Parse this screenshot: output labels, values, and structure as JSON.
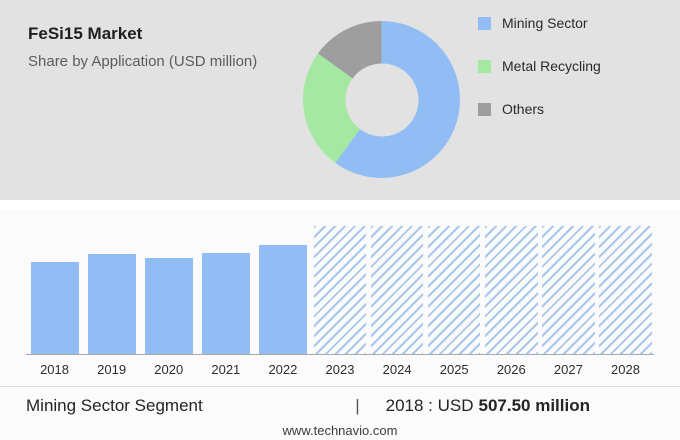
{
  "header": {
    "title": "FeSi15 Market",
    "subtitle": "Share by Application (USD million)"
  },
  "colors": {
    "panel_bg": "#e2e2e2",
    "mining_blue": "#92bdf4",
    "recycling_green": "#a5e8a2",
    "others_gray": "#9e9e9e",
    "hatch": "#a9c6ec"
  },
  "chart_data": [
    {
      "type": "pie",
      "title": "FeSi15 Market Share by Application (USD million)",
      "donut": true,
      "legend_position": "right",
      "labels": [
        "Mining Sector",
        "Metal Recycling",
        "Others"
      ],
      "values": [
        60,
        25,
        15
      ],
      "values_note": "percent estimated from slice angles; not labeled in image",
      "colors": [
        "#92bdf4",
        "#a5e8a2",
        "#9e9e9e"
      ]
    },
    {
      "type": "bar",
      "categories": [
        "2018",
        "2019",
        "2020",
        "2021",
        "2022",
        "2023",
        "2024",
        "2025",
        "2026",
        "2027",
        "2028"
      ],
      "series": [
        {
          "name": "Mining Sector (USD million)",
          "known_values": {
            "2018": 507.5
          }
        }
      ],
      "forecast_categories": [
        "2023",
        "2024",
        "2025",
        "2026",
        "2027",
        "2028"
      ],
      "forecast_style": "hatched",
      "bar_color": "#92bdf4",
      "grid": false,
      "bars": [
        {
          "year": "2018",
          "height_pct": 72,
          "forecast": false
        },
        {
          "year": "2019",
          "height_pct": 78,
          "forecast": false
        },
        {
          "year": "2020",
          "height_pct": 75,
          "forecast": false
        },
        {
          "year": "2021",
          "height_pct": 79,
          "forecast": false
        },
        {
          "year": "2022",
          "height_pct": 85,
          "forecast": false
        },
        {
          "year": "2023",
          "height_pct": 100,
          "forecast": true
        },
        {
          "year": "2024",
          "height_pct": 100,
          "forecast": true
        },
        {
          "year": "2025",
          "height_pct": 100,
          "forecast": true
        },
        {
          "year": "2026",
          "height_pct": 100,
          "forecast": true
        },
        {
          "year": "2027",
          "height_pct": 100,
          "forecast": true
        },
        {
          "year": "2028",
          "height_pct": 100,
          "forecast": true
        }
      ]
    }
  ],
  "footer": {
    "segment_label": "Mining Sector Segment",
    "separator": "|",
    "value_prefix": "2018 : USD",
    "value_bold": "507.50 million",
    "website": "www.technavio.com"
  }
}
